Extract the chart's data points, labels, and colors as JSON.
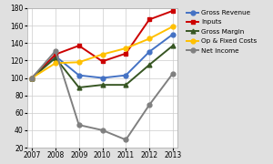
{
  "years": [
    2007,
    2008,
    2009,
    2010,
    2011,
    2012,
    2013
  ],
  "series": {
    "Gross Revenue": {
      "values": [
        100,
        125,
        103,
        100,
        103,
        130,
        150
      ],
      "color": "#4472C4",
      "marker": "o"
    },
    "Inputs": {
      "values": [
        100,
        127,
        137,
        119,
        128,
        167,
        177
      ],
      "color": "#CC0000",
      "marker": "s"
    },
    "Gross Margin": {
      "values": [
        100,
        123,
        89,
        92,
        92,
        115,
        137
      ],
      "color": "#375623",
      "marker": "^"
    },
    "Op & Fixed Costs": {
      "values": [
        100,
        117,
        118,
        127,
        134,
        145,
        159
      ],
      "color": "#FFC000",
      "marker": "o"
    },
    "Net Income": {
      "values": [
        100,
        131,
        46,
        40,
        29,
        69,
        105
      ],
      "color": "#808080",
      "marker": "o"
    }
  },
  "ylim": [
    20,
    180
  ],
  "yticks": [
    20,
    40,
    60,
    80,
    100,
    120,
    140,
    160,
    180
  ],
  "background_color": "#E0E0E0",
  "plot_background": "#FFFFFF",
  "legend_fontsize": 5.2,
  "tick_fontsize": 5.5,
  "linewidth": 1.4,
  "markersize": 3.5
}
